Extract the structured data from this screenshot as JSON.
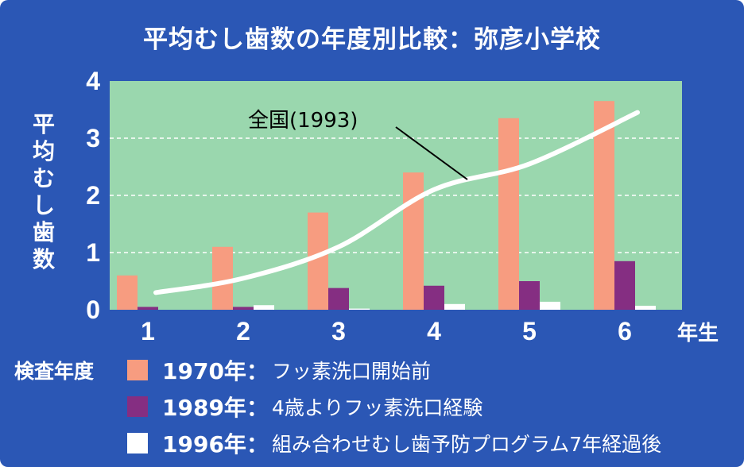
{
  "chart_data": {
    "type": "bar",
    "title": "平均むし歯数の年度別比較：弥彦小学校",
    "ylabel": "平均むし歯数",
    "xunit": "年生",
    "categories": [
      "1",
      "2",
      "3",
      "4",
      "5",
      "6"
    ],
    "ylim": [
      0,
      4
    ],
    "yticks": [
      "0",
      "1",
      "2",
      "3",
      "4"
    ],
    "grid": true,
    "series": [
      {
        "name": "1970年",
        "color": "#f79c80",
        "values": [
          0.6,
          1.1,
          1.7,
          2.4,
          3.35,
          3.65
        ]
      },
      {
        "name": "1989年",
        "color": "#852e82",
        "values": [
          0.05,
          0.05,
          0.38,
          0.42,
          0.5,
          0.85
        ]
      },
      {
        "name": "1996年",
        "color": "#ffffff",
        "values": [
          0.0,
          0.08,
          0.02,
          0.1,
          0.14,
          0.07
        ]
      }
    ],
    "line": {
      "label": "全国(1993)",
      "color": "#ffffff",
      "x": [
        "1",
        "2",
        "3",
        "4",
        "5",
        "6"
      ],
      "values": [
        0.3,
        0.55,
        1.1,
        2.1,
        2.55,
        3.45
      ]
    }
  },
  "legend": {
    "title": "検査年度",
    "items": [
      {
        "year": "1970年：",
        "desc": "フッ素洗口開始前",
        "color": "#f79c80"
      },
      {
        "year": "1989年：",
        "desc": "4歳よりフッ素洗口経験",
        "color": "#852e82"
      },
      {
        "year": "1996年：",
        "desc": "組み合わせむし歯予防プログラム7年経過後",
        "color": "#ffffff"
      }
    ]
  },
  "colors": {
    "background": "#2b57b5",
    "plot_area": "#9ad7ae",
    "gridline": "#ffffff",
    "text": "#ffffff"
  }
}
